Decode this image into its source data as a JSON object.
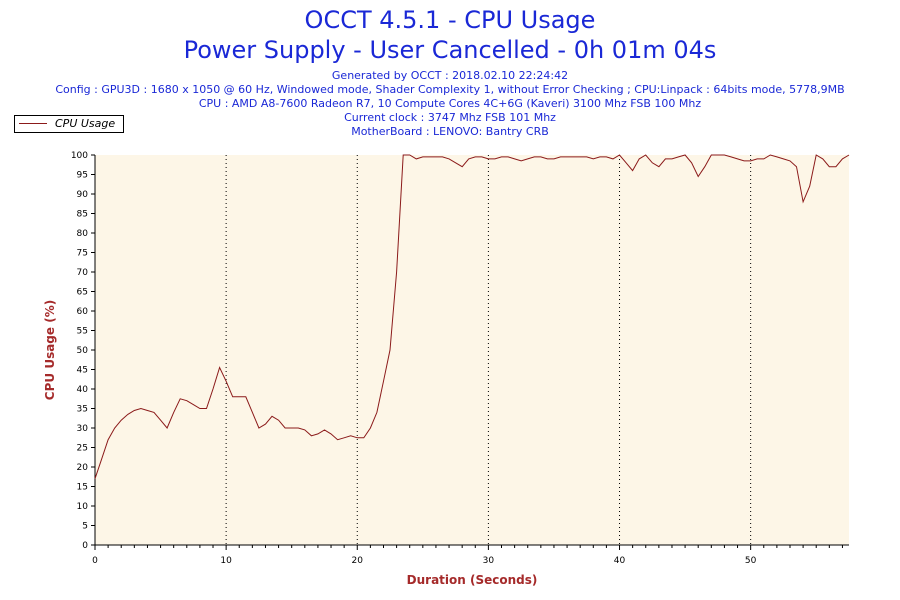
{
  "header": {
    "title": "OCCT 4.5.1 - CPU Usage",
    "subtitle": "Power Supply - User Cancelled - 0h 01m 04s",
    "info_lines": [
      "Generated by OCCT : 2018.02.10 22:24:42",
      "Config : GPU3D : 1680 x 1050 @ 60 Hz, Windowed mode, Shader Complexity 1, without Error Checking ; CPU:Linpack : 64bits mode, 5778,9MB",
      "CPU : AMD A8-7600 Radeon R7, 10 Compute Cores 4C+6G (Kaveri) 3100 Mhz FSB 100 Mhz",
      "Current clock : 3747 Mhz FSB 101 Mhz",
      "MotherBoard : LENOVO: Bantry CRB"
    ]
  },
  "legend": {
    "label": "CPU Usage"
  },
  "colors": {
    "line": "#8b1a1a",
    "plot_background": "#fdf6e7",
    "title": "#1a28d6",
    "axis_title": "#a52a2a"
  },
  "chart_data": {
    "type": "line",
    "xlabel": "Duration (Seconds)",
    "ylabel": "CPU Usage (%)",
    "xlim": [
      0,
      57.5
    ],
    "ylim": [
      0,
      100
    ],
    "x_ticks": [
      0,
      10,
      20,
      30,
      40,
      50
    ],
    "y_ticks": [
      0,
      5,
      10,
      15,
      20,
      25,
      30,
      35,
      40,
      45,
      50,
      55,
      60,
      65,
      70,
      75,
      80,
      85,
      90,
      95,
      100
    ],
    "grid": "vertical dotted at major x ticks",
    "legend_position": "top-left",
    "series": [
      {
        "name": "CPU Usage",
        "x": [
          0,
          0.5,
          1,
          1.5,
          2,
          2.5,
          3,
          3.5,
          4,
          4.5,
          5,
          5.5,
          6,
          6.5,
          7,
          7.5,
          8,
          8.5,
          9,
          9.5,
          10,
          10.5,
          11,
          11.5,
          12,
          12.5,
          13,
          13.5,
          14,
          14.5,
          15,
          15.5,
          16,
          16.5,
          17,
          17.5,
          18,
          18.5,
          19,
          19.5,
          20,
          20.5,
          21,
          21.5,
          22,
          22.5,
          23,
          23.5,
          24,
          24.5,
          25,
          25.5,
          26,
          26.5,
          27,
          27.5,
          28,
          28.5,
          29,
          29.5,
          30,
          30.5,
          31,
          31.5,
          32,
          32.5,
          33,
          33.5,
          34,
          34.5,
          35,
          35.5,
          36,
          36.5,
          37,
          37.5,
          38,
          38.5,
          39,
          39.5,
          40,
          40.5,
          41,
          41.5,
          42,
          42.5,
          43,
          43.5,
          44,
          44.5,
          45,
          45.5,
          46,
          46.5,
          47,
          47.5,
          48,
          48.5,
          49,
          49.5,
          50,
          50.5,
          51,
          51.5,
          52,
          52.5,
          53,
          53.5,
          54,
          54.5,
          55,
          55.5,
          56,
          56.5,
          57,
          57.5
        ],
        "values": [
          17,
          22,
          27,
          30,
          32,
          33.5,
          34.5,
          35,
          34.5,
          34,
          32,
          30,
          34,
          37.5,
          37,
          36,
          35,
          35,
          40,
          45.5,
          42,
          38,
          38,
          38,
          34,
          30,
          31,
          33,
          32,
          30,
          30,
          30,
          29.5,
          28,
          28.5,
          29.5,
          28.5,
          27,
          27.5,
          28,
          27.5,
          27.5,
          30,
          34,
          42,
          50,
          70,
          101,
          101,
          99,
          99.5,
          99.5,
          99.5,
          99.5,
          99,
          98,
          97,
          99,
          99.5,
          99.5,
          99,
          99,
          99.5,
          99.5,
          99,
          98.5,
          99,
          99.5,
          99.5,
          99,
          99,
          99.5,
          99.5,
          99.5,
          99.5,
          99.5,
          99,
          99.5,
          99.5,
          99,
          100,
          98,
          96,
          99,
          100,
          98,
          97,
          99,
          99,
          99.5,
          100,
          98,
          94.5,
          97,
          100,
          100,
          100,
          99.5,
          99,
          98.5,
          98.5,
          99,
          99,
          100,
          99.5,
          99,
          98.5,
          97,
          88,
          92,
          100,
          99,
          97,
          97,
          99,
          100
        ]
      }
    ]
  }
}
